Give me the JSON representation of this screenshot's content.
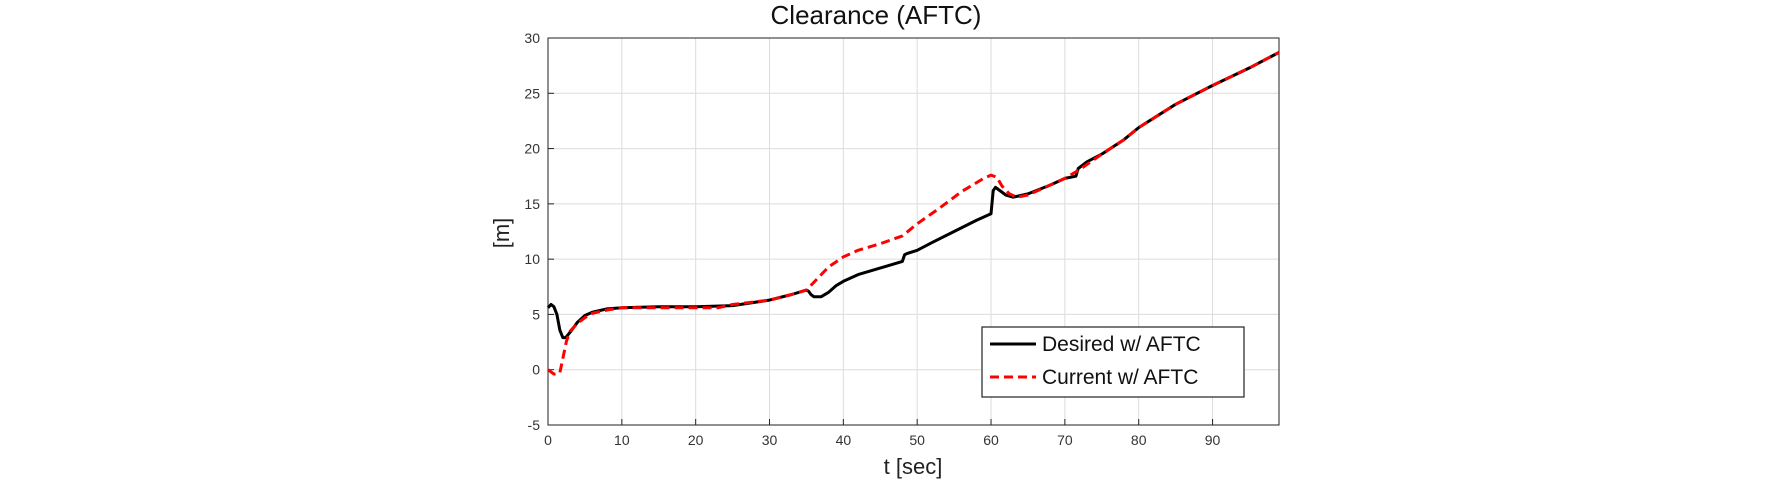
{
  "chart_data": {
    "type": "line",
    "title": "Clearance (AFTC)",
    "xlabel": "t [sec]",
    "ylabel": "[m]",
    "xlim": [
      0,
      99
    ],
    "ylim": [
      -5,
      30
    ],
    "xticks": [
      0,
      10,
      20,
      30,
      40,
      50,
      60,
      70,
      80,
      90
    ],
    "yticks": [
      -5,
      0,
      5,
      10,
      15,
      20,
      25,
      30
    ],
    "grid": true,
    "legend_position": "bottom-right",
    "series": [
      {
        "name": "Desired w/ AFTC",
        "color": "#000000",
        "style": "solid",
        "x": [
          0,
          0.4,
          0.8,
          1.2,
          1.6,
          2.0,
          2.4,
          3.0,
          4.0,
          5.0,
          6.0,
          8.0,
          10,
          15,
          20,
          25,
          30,
          33,
          35,
          35.3,
          35.6,
          36,
          37,
          38,
          39,
          40,
          42,
          44,
          46,
          48,
          48.3,
          48.6,
          50,
          52,
          55,
          58,
          60,
          60.3,
          60.6,
          61,
          62,
          63,
          65,
          68,
          70,
          71.5,
          71.8,
          73,
          75,
          78,
          80,
          85,
          90,
          95,
          99
        ],
        "y": [
          5.6,
          5.9,
          5.7,
          5.0,
          3.6,
          2.9,
          2.9,
          3.4,
          4.3,
          4.9,
          5.2,
          5.5,
          5.6,
          5.7,
          5.7,
          5.8,
          6.3,
          6.8,
          7.2,
          7.1,
          6.8,
          6.6,
          6.6,
          7.0,
          7.6,
          8.0,
          8.6,
          9.0,
          9.4,
          9.8,
          10.4,
          10.5,
          10.8,
          11.5,
          12.5,
          13.5,
          14.1,
          16.2,
          16.5,
          16.3,
          15.8,
          15.6,
          15.9,
          16.7,
          17.3,
          17.5,
          18.2,
          18.8,
          19.5,
          20.8,
          21.9,
          24.0,
          25.7,
          27.3,
          28.7
        ]
      },
      {
        "name": "Current w/ AFTC",
        "color": "#ff0000",
        "style": "dashed",
        "x": [
          0,
          0.8,
          1.6,
          2.0,
          2.5,
          3.0,
          4.0,
          5.0,
          6.0,
          8.0,
          10,
          15,
          20,
          23,
          25,
          30,
          33,
          35,
          36,
          38,
          40,
          42,
          45,
          48,
          50,
          53,
          56,
          59,
          60,
          60.8,
          61.5,
          62.5,
          63.5,
          65,
          68,
          70,
          72,
          75,
          78,
          80,
          85,
          90,
          95,
          99
        ],
        "y": [
          0.0,
          -0.4,
          -0.3,
          1.0,
          2.6,
          3.5,
          4.2,
          4.7,
          5.1,
          5.4,
          5.6,
          5.6,
          5.6,
          5.6,
          5.9,
          6.3,
          6.8,
          7.2,
          7.9,
          9.3,
          10.2,
          10.8,
          11.4,
          12.1,
          13.2,
          14.6,
          16.1,
          17.3,
          17.6,
          17.4,
          16.6,
          15.9,
          15.6,
          15.8,
          16.7,
          17.3,
          18.1,
          19.5,
          20.8,
          21.9,
          24.0,
          25.7,
          27.3,
          28.7
        ]
      }
    ]
  }
}
